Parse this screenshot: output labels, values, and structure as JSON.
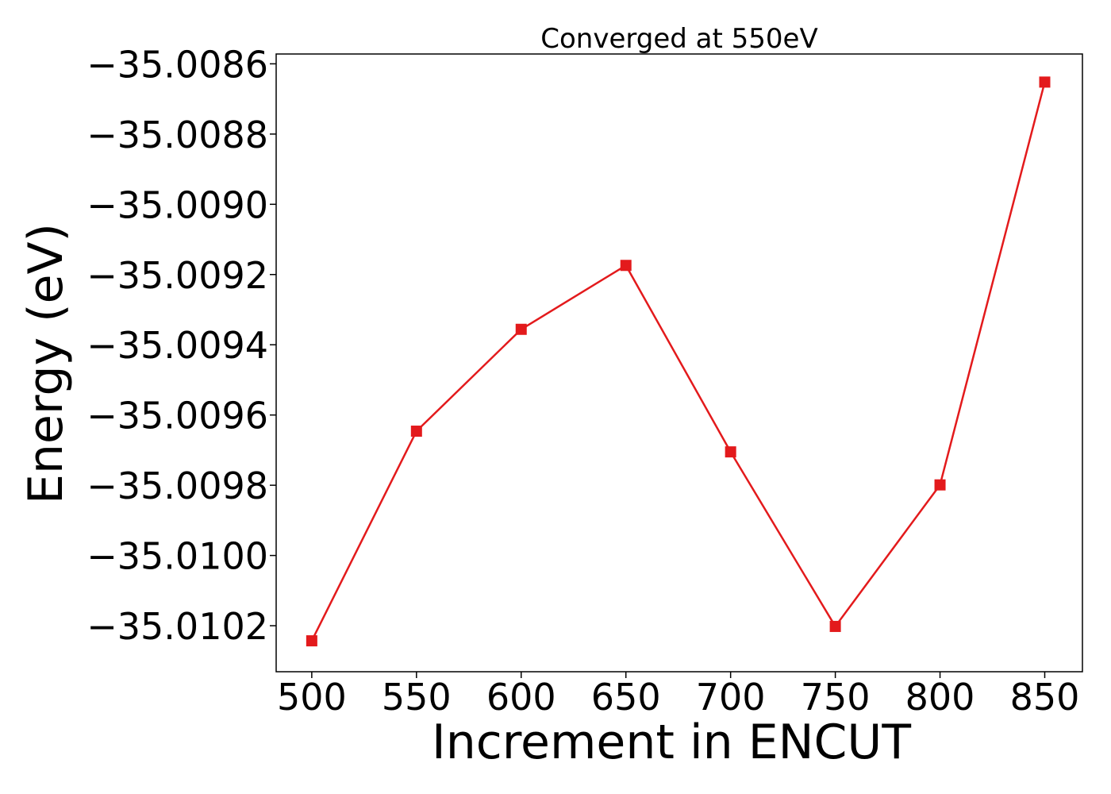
{
  "chart_data": {
    "type": "line",
    "title": "Converged at 550eV",
    "xlabel": "Increment in ENCUT",
    "ylabel": "Energy (eV)",
    "x": [
      500,
      550,
      600,
      650,
      700,
      750,
      800,
      850
    ],
    "series": [
      {
        "values": [
          -35.010243,
          -35.009646,
          -35.009356,
          -35.009174,
          -35.009705,
          -35.010202,
          -35.009799,
          -35.008652
        ],
        "color": "#e31a1c",
        "marker": "square"
      }
    ],
    "xlim": [
      483,
      868
    ],
    "ylim": [
      -35.010331,
      -35.008572
    ],
    "xticks": [
      500,
      550,
      600,
      650,
      700,
      750,
      800,
      850
    ],
    "xtick_labels": [
      "500",
      "550",
      "600",
      "650",
      "700",
      "750",
      "800",
      "850"
    ],
    "yticks": [
      -35.0086,
      -35.0088,
      -35.009,
      -35.0092,
      -35.0094,
      -35.0096,
      -35.0098,
      -35.01,
      -35.0102
    ],
    "ytick_labels": [
      "−35.0086",
      "−35.0088",
      "−35.0090",
      "−35.0092",
      "−35.0094",
      "−35.0096",
      "−35.0098",
      "−35.0100",
      "−35.0102"
    ],
    "grid": false,
    "legend": "none"
  }
}
